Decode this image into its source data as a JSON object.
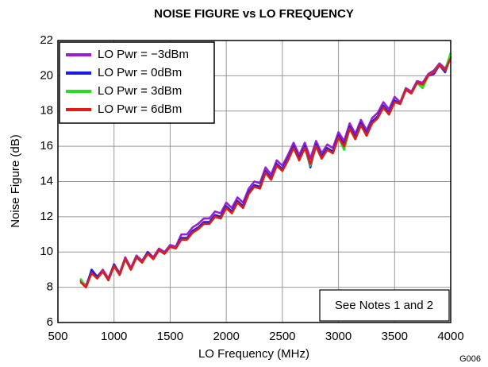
{
  "chart_data": {
    "type": "line",
    "title": "NOISE FIGURE vs LO FREQUENCY",
    "x_label": "LO Frequency (MHz)",
    "y_label": "Noise Figure (dB)",
    "annotation": "See Notes 1 and 2",
    "figure_id": "G006",
    "xlim": [
      500,
      4000
    ],
    "xticks": [
      500,
      1000,
      1500,
      2000,
      2500,
      3000,
      3500,
      4000
    ],
    "ylim": [
      6,
      22
    ],
    "yticks": [
      6,
      8,
      10,
      12,
      14,
      16,
      18,
      20,
      22
    ],
    "grid": true,
    "legend": "upper left",
    "x": [
      700,
      750,
      800,
      850,
      900,
      950,
      1000,
      1050,
      1100,
      1150,
      1200,
      1250,
      1300,
      1350,
      1400,
      1450,
      1500,
      1550,
      1600,
      1650,
      1700,
      1750,
      1800,
      1850,
      1900,
      1950,
      2000,
      2050,
      2100,
      2150,
      2200,
      2250,
      2300,
      2350,
      2400,
      2450,
      2500,
      2550,
      2600,
      2650,
      2700,
      2750,
      2800,
      2850,
      2900,
      2950,
      3000,
      3050,
      3100,
      3150,
      3200,
      3250,
      3300,
      3350,
      3400,
      3450,
      3500,
      3550,
      3600,
      3650,
      3700,
      3750,
      3800,
      3850,
      3900,
      3950,
      4000
    ],
    "series": [
      {
        "name": "LO Pwr = −3dBm",
        "color": "#9b1fd1",
        "values": [
          8.4,
          8.1,
          8.9,
          8.6,
          9.0,
          8.5,
          9.3,
          8.8,
          9.7,
          9.1,
          9.8,
          9.5,
          10.0,
          9.7,
          10.2,
          10.0,
          10.4,
          10.3,
          11.0,
          11.0,
          11.4,
          11.6,
          11.9,
          11.9,
          12.3,
          12.2,
          12.8,
          12.5,
          13.1,
          12.8,
          13.6,
          14.0,
          13.9,
          14.8,
          14.4,
          15.2,
          14.9,
          15.5,
          16.2,
          15.5,
          16.2,
          15.3,
          16.3,
          15.6,
          16.1,
          15.9,
          16.8,
          16.3,
          17.3,
          16.7,
          17.5,
          16.9,
          17.6,
          17.9,
          18.5,
          18.1,
          18.8,
          18.5,
          19.3,
          19.1,
          19.7,
          19.6,
          20.1,
          20.3,
          20.7,
          20.4,
          21.1
        ]
      },
      {
        "name": "LO Pwr = 0dBm",
        "color": "#1a1ae6",
        "values": [
          8.4,
          8.0,
          9.0,
          8.6,
          8.9,
          8.4,
          9.3,
          8.7,
          9.6,
          9.0,
          9.7,
          9.4,
          10.0,
          9.6,
          10.1,
          9.9,
          10.3,
          10.2,
          10.8,
          10.8,
          11.2,
          11.4,
          11.7,
          11.7,
          12.1,
          12.0,
          12.6,
          12.3,
          12.9,
          12.6,
          13.4,
          13.8,
          13.7,
          14.6,
          14.2,
          15.0,
          14.7,
          15.3,
          16.0,
          15.3,
          16.0,
          14.8,
          16.1,
          15.4,
          15.9,
          15.7,
          16.6,
          16.1,
          17.1,
          16.5,
          17.3,
          16.7,
          17.4,
          17.7,
          18.3,
          17.9,
          18.6,
          18.4,
          19.2,
          19.0,
          19.6,
          19.5,
          20.0,
          20.1,
          20.6,
          20.2,
          21.1
        ]
      },
      {
        "name": "LO Pwr = 3dBm",
        "color": "#22e01e",
        "values": [
          8.5,
          8.0,
          8.8,
          8.5,
          8.9,
          8.4,
          9.2,
          8.7,
          9.6,
          9.0,
          9.7,
          9.4,
          9.9,
          9.6,
          10.1,
          9.9,
          10.3,
          10.2,
          10.7,
          10.7,
          11.1,
          11.3,
          11.6,
          11.6,
          12.0,
          11.9,
          12.5,
          12.2,
          12.8,
          12.5,
          13.3,
          13.7,
          13.6,
          14.5,
          14.1,
          14.9,
          14.6,
          15.2,
          15.9,
          15.2,
          15.9,
          14.9,
          16.0,
          15.3,
          15.8,
          15.6,
          16.5,
          15.8,
          17.0,
          16.4,
          17.2,
          16.6,
          17.3,
          17.6,
          18.2,
          17.8,
          18.5,
          18.4,
          19.2,
          19.0,
          19.6,
          19.3,
          20.0,
          20.2,
          20.6,
          20.3,
          21.3
        ]
      },
      {
        "name": "LO Pwr = 6dBm",
        "color": "#e31a1a",
        "values": [
          8.3,
          8.0,
          8.8,
          8.5,
          8.9,
          8.4,
          9.2,
          8.7,
          9.6,
          9.0,
          9.7,
          9.4,
          9.9,
          9.6,
          10.1,
          9.9,
          10.3,
          10.2,
          10.7,
          10.7,
          11.1,
          11.3,
          11.6,
          11.6,
          12.0,
          11.9,
          12.5,
          12.2,
          12.8,
          12.5,
          13.3,
          13.7,
          13.6,
          14.5,
          14.1,
          14.9,
          14.6,
          15.2,
          15.9,
          15.2,
          15.9,
          15.0,
          16.0,
          15.3,
          15.8,
          15.6,
          16.5,
          16.0,
          17.0,
          16.4,
          17.2,
          16.6,
          17.3,
          17.6,
          18.2,
          17.8,
          18.5,
          18.4,
          19.2,
          19.0,
          19.6,
          19.5,
          20.0,
          20.2,
          20.6,
          20.3,
          21.0
        ]
      }
    ]
  }
}
